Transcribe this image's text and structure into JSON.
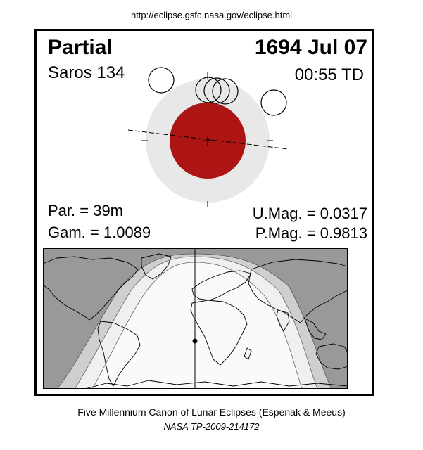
{
  "header": {
    "url": "http://eclipse.gsfc.nasa.gov/eclipse.html"
  },
  "eclipse": {
    "type": "Partial",
    "date": "1694 Jul 07",
    "saros": "Saros 134",
    "time": "00:55 TD",
    "par": "Par. =  39m",
    "gam": "Gam. = 1.0089",
    "umag": "U.Mag. = 0.0317",
    "pmag": "P.Mag. = 0.9813"
  },
  "colors": {
    "umbra": "#ad1414",
    "penumbra": "#e8e8e8",
    "night": "#999999",
    "penumbral_zone": "#cfcfcf",
    "partial_zone": "#f0f0f0",
    "land": "#ffffff"
  },
  "footer": {
    "line1": "Five Millennium Canon of Lunar Eclipses (Espenak & Meeus)",
    "line2": "NASA TP-2009-214172"
  }
}
